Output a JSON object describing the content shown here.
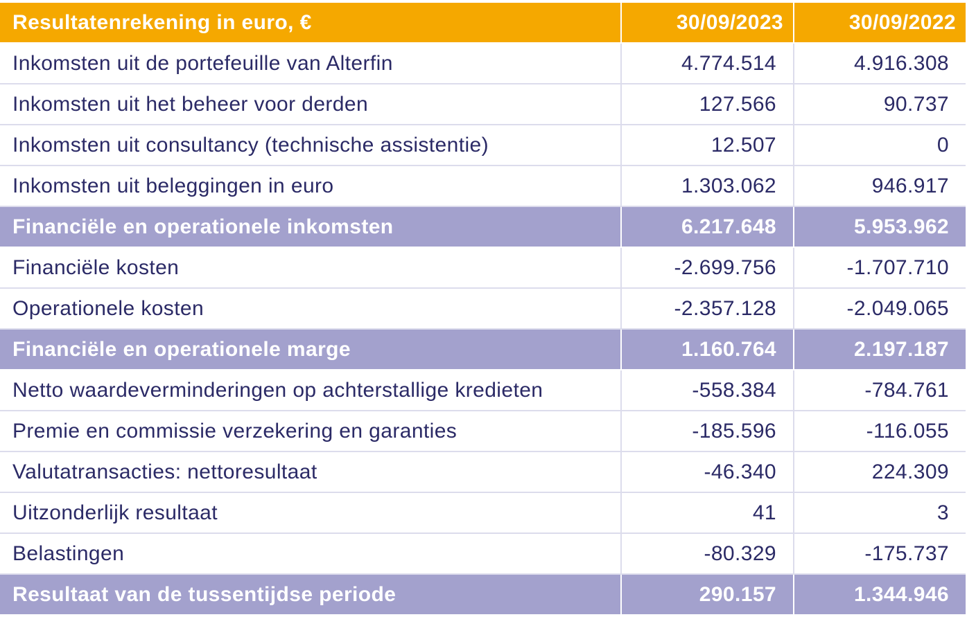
{
  "table": {
    "header": {
      "label": "Resultatenrekening in euro, €",
      "col1": "30/09/2023",
      "col2": "30/09/2022"
    },
    "rows": [
      {
        "label": "Inkomsten uit de portefeuille van Alterfin",
        "v2023": "4.774.514",
        "v2022": "4.916.308",
        "type": "normal"
      },
      {
        "label": "Inkomsten uit het beheer voor derden",
        "v2023": "127.566",
        "v2022": "90.737",
        "type": "normal"
      },
      {
        "label": "Inkomsten uit consultancy (technische assistentie)",
        "v2023": "12.507",
        "v2022": "0",
        "type": "normal"
      },
      {
        "label": "Inkomsten uit beleggingen in euro",
        "v2023": "1.303.062",
        "v2022": "946.917",
        "type": "normal"
      },
      {
        "label": "Financiële en operationele inkomsten",
        "v2023": "6.217.648",
        "v2022": "5.953.962",
        "type": "total"
      },
      {
        "label": "Financiële kosten",
        "v2023": "-2.699.756",
        "v2022": "-1.707.710",
        "type": "normal"
      },
      {
        "label": "Operationele kosten",
        "v2023": "-2.357.128",
        "v2022": "-2.049.065",
        "type": "normal"
      },
      {
        "label": "Financiële en operationele marge",
        "v2023": "1.160.764",
        "v2022": "2.197.187",
        "type": "total"
      },
      {
        "label": "Netto waardeverminderingen op achterstallige kredieten",
        "v2023": "-558.384",
        "v2022": "-784.761",
        "type": "normal"
      },
      {
        "label": "Premie en commissie verzekering en garanties",
        "v2023": "-185.596",
        "v2022": "-116.055",
        "type": "normal"
      },
      {
        "label": "Valutatransacties: nettoresultaat",
        "v2023": "-46.340",
        "v2022": "224.309",
        "type": "normal"
      },
      {
        "label": "Uitzonderlijk resultaat",
        "v2023": "41",
        "v2022": "3",
        "type": "normal"
      },
      {
        "label": "Belastingen",
        "v2023": "-80.329",
        "v2022": "-175.737",
        "type": "normal"
      },
      {
        "label": "Resultaat van de tussentijdse periode",
        "v2023": "290.157",
        "v2022": "1.344.946",
        "type": "total"
      }
    ]
  },
  "colors": {
    "header_bg": "#f5a800",
    "total_bg": "#a3a1cd",
    "text": "#2b2a66"
  }
}
